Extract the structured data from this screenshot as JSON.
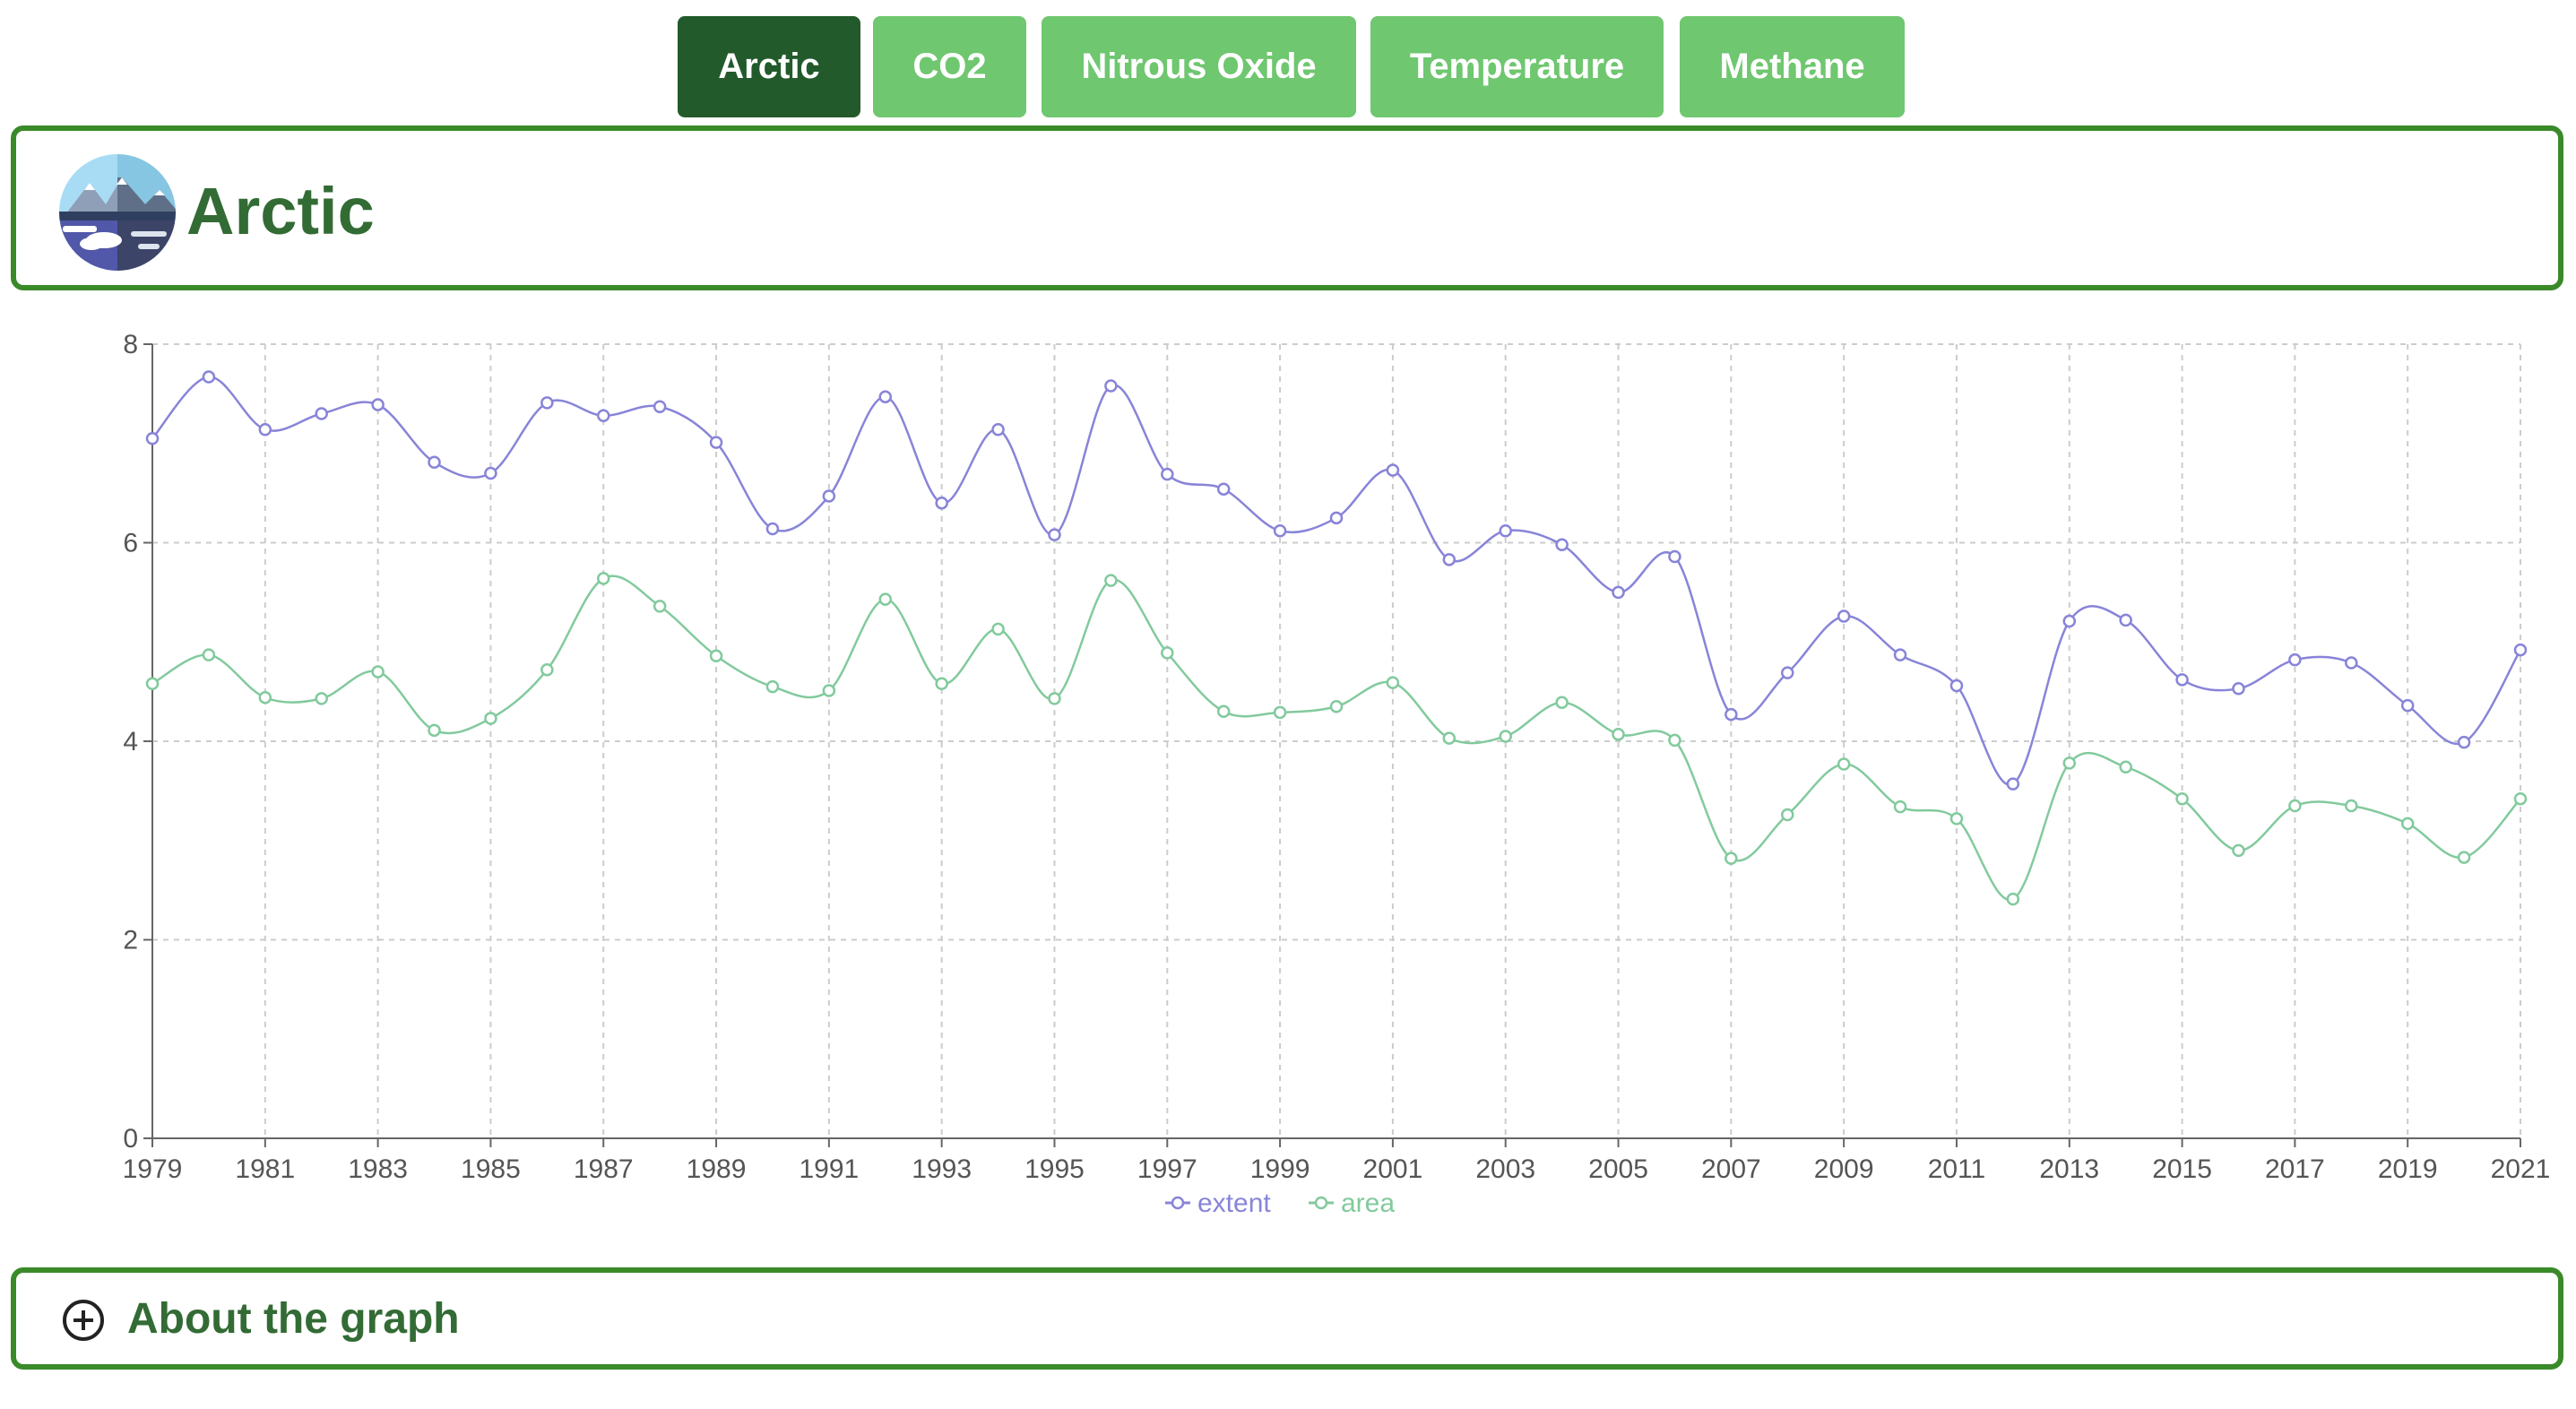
{
  "tabs": [
    {
      "label": "Arctic",
      "active": true
    },
    {
      "label": "CO2",
      "active": false
    },
    {
      "label": "Nitrous Oxide",
      "active": false
    },
    {
      "label": "Temperature",
      "active": false
    },
    {
      "label": "Methane",
      "active": false
    }
  ],
  "header": {
    "title": "Arctic",
    "icon": "arctic-landscape-icon"
  },
  "about": {
    "label": "About the graph",
    "icon": "plus-circle-icon"
  },
  "colors": {
    "tab_active": "#235a2c",
    "tab_inactive": "#6fc76f",
    "panel_border": "#3a8a2a",
    "title_text": "#336b35",
    "extent_line": "#8884d8",
    "area_line": "#82ca9d"
  },
  "chart_data": {
    "type": "line",
    "x": [
      1979,
      1980,
      1981,
      1982,
      1983,
      1984,
      1985,
      1986,
      1987,
      1988,
      1989,
      1990,
      1991,
      1992,
      1993,
      1994,
      1995,
      1996,
      1997,
      1998,
      1999,
      2000,
      2001,
      2002,
      2003,
      2004,
      2005,
      2006,
      2007,
      2008,
      2009,
      2010,
      2011,
      2012,
      2013,
      2014,
      2015,
      2016,
      2017,
      2018,
      2019,
      2020,
      2021
    ],
    "x_tick_labels": [
      "1979",
      "1981",
      "1983",
      "1985",
      "1987",
      "1989",
      "1991",
      "1993",
      "1995",
      "1997",
      "1999",
      "2001",
      "2003",
      "2005",
      "2007",
      "2009",
      "2011",
      "2013",
      "2015",
      "2017",
      "2019",
      "2021"
    ],
    "y_ticks": [
      0,
      2,
      4,
      6,
      8
    ],
    "ylim": [
      0,
      8
    ],
    "grid": true,
    "legend_position": "bottom-center",
    "series": [
      {
        "name": "extent",
        "color": "#8884d8",
        "values": [
          7.05,
          7.67,
          7.14,
          7.3,
          7.39,
          6.81,
          6.7,
          7.41,
          7.28,
          7.37,
          7.01,
          6.14,
          6.47,
          7.47,
          6.4,
          7.14,
          6.08,
          7.58,
          6.69,
          6.54,
          6.12,
          6.25,
          6.73,
          5.83,
          6.12,
          5.98,
          5.5,
          5.86,
          4.27,
          4.69,
          5.26,
          4.87,
          4.56,
          3.57,
          5.21,
          5.22,
          4.62,
          4.53,
          4.82,
          4.79,
          4.36,
          3.99,
          4.92
        ]
      },
      {
        "name": "area",
        "color": "#82ca9d",
        "values": [
          4.58,
          4.87,
          4.44,
          4.43,
          4.7,
          4.11,
          4.23,
          4.72,
          5.64,
          5.36,
          4.86,
          4.55,
          4.51,
          5.43,
          4.58,
          5.13,
          4.43,
          5.62,
          4.89,
          4.3,
          4.29,
          4.35,
          4.59,
          4.03,
          4.05,
          4.39,
          4.07,
          4.01,
          2.82,
          3.26,
          3.77,
          3.34,
          3.22,
          2.41,
          3.78,
          3.74,
          3.42,
          2.9,
          3.35,
          3.35,
          3.17,
          2.83,
          3.42
        ]
      }
    ]
  }
}
